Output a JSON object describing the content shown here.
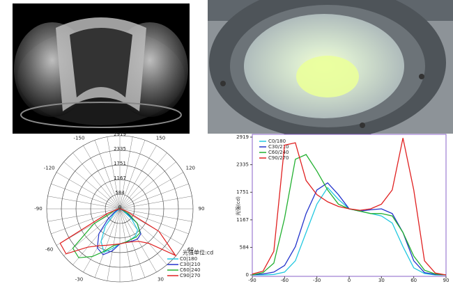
{
  "chart_data": [
    {
      "type": "polar",
      "annotation": "光强单位:cd",
      "x": [
        -90,
        -80,
        -70,
        -60,
        -50,
        -40,
        -30,
        -20,
        -10,
        0,
        10,
        20,
        30,
        40,
        50,
        60,
        70,
        80,
        90
      ],
      "rlim": [
        0,
        2919
      ],
      "rticks": [
        0,
        584,
        1167,
        1751,
        2335,
        2919
      ],
      "angleticks": [
        -150,
        -120,
        -90,
        -60,
        -30,
        30,
        60,
        90,
        120,
        150
      ],
      "series": [
        {
          "name": "C0|180",
          "color": "#22c8e0",
          "values": [
            0,
            0,
            10,
            60,
            300,
            900,
            1500,
            1850,
            1600,
            1400,
            1350,
            1300,
            1250,
            1100,
            600,
            150,
            30,
            0,
            0
          ]
        },
        {
          "name": "C30|210",
          "color": "#2233cc",
          "values": [
            0,
            20,
            60,
            200,
            600,
            1300,
            1800,
            1950,
            1700,
            1400,
            1350,
            1380,
            1400,
            1300,
            900,
            300,
            50,
            10,
            0
          ]
        },
        {
          "name": "C60|240",
          "color": "#22b030",
          "values": [
            0,
            50,
            250,
            1200,
            2450,
            2550,
            2200,
            1800,
            1500,
            1400,
            1350,
            1300,
            1300,
            1250,
            900,
            400,
            100,
            20,
            0
          ]
        },
        {
          "name": "C90|270",
          "color": "#e02020",
          "values": [
            20,
            80,
            500,
            2750,
            2800,
            2000,
            1700,
            1550,
            1450,
            1400,
            1370,
            1400,
            1500,
            1800,
            2900,
            1800,
            300,
            40,
            0
          ]
        }
      ]
    },
    {
      "type": "line",
      "y_label": "光强(cd)",
      "x": [
        -90,
        -80,
        -70,
        -60,
        -50,
        -40,
        -30,
        -20,
        -10,
        0,
        10,
        20,
        30,
        40,
        50,
        60,
        70,
        80,
        90
      ],
      "xlim": [
        -90,
        90
      ],
      "xticks": [
        -90,
        -60,
        -30,
        0,
        30,
        60,
        90
      ],
      "ylim": [
        0,
        2919
      ],
      "yticks": [
        0,
        584,
        1167,
        1751,
        2335,
        2919
      ],
      "series": [
        {
          "name": "C0/180",
          "color": "#22c8e0",
          "values": [
            0,
            0,
            10,
            60,
            300,
            900,
            1500,
            1850,
            1600,
            1400,
            1350,
            1300,
            1250,
            1100,
            600,
            150,
            30,
            0,
            0
          ]
        },
        {
          "name": "C30/210",
          "color": "#2233cc",
          "values": [
            0,
            20,
            60,
            200,
            600,
            1300,
            1800,
            1950,
            1700,
            1400,
            1350,
            1380,
            1400,
            1300,
            900,
            300,
            50,
            10,
            0
          ]
        },
        {
          "name": "C60/240",
          "color": "#22b030",
          "values": [
            0,
            50,
            250,
            1200,
            2450,
            2550,
            2200,
            1800,
            1500,
            1400,
            1350,
            1300,
            1300,
            1250,
            900,
            400,
            100,
            20,
            0
          ]
        },
        {
          "name": "C90/270",
          "color": "#e02020",
          "values": [
            20,
            80,
            500,
            2750,
            2800,
            2000,
            1700,
            1550,
            1450,
            1400,
            1370,
            1400,
            1500,
            1800,
            2900,
            1800,
            300,
            40,
            0
          ]
        }
      ]
    }
  ]
}
